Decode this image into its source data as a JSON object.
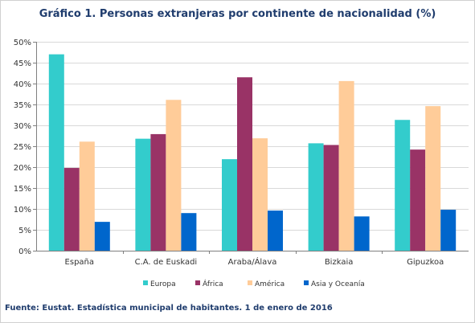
{
  "chart_data": {
    "type": "bar",
    "title": "Gráfico 1. Personas extranjeras por continente de nacionalidad (%)",
    "categories": [
      "España",
      "C.A. de Euskadi",
      "Araba/Álava",
      "Bizkaia",
      "Gipuzkoa"
    ],
    "series": [
      {
        "name": "Europa",
        "color": "#33cccc",
        "values": [
          47.0,
          26.8,
          21.9,
          25.7,
          31.3
        ]
      },
      {
        "name": "África",
        "color": "#993366",
        "values": [
          19.8,
          27.9,
          41.5,
          25.3,
          24.2
        ]
      },
      {
        "name": "América",
        "color": "#ffcc99",
        "values": [
          26.1,
          36.1,
          26.9,
          40.6,
          34.6
        ]
      },
      {
        "name": "Asia y Oceanía",
        "color": "#0066cc",
        "values": [
          6.9,
          9.0,
          9.6,
          8.2,
          9.8
        ]
      }
    ],
    "yticks": [
      "0%",
      "5%",
      "10%",
      "15%",
      "20%",
      "25%",
      "30%",
      "35%",
      "40%",
      "45%",
      "50%"
    ],
    "ylim": [
      0,
      50
    ],
    "ylabel": "",
    "xlabel": "",
    "grid": true,
    "legend": "bottom"
  },
  "source": "Fuente: Eustat. Estadística municipal de habitantes. 1 de enero de 2016"
}
